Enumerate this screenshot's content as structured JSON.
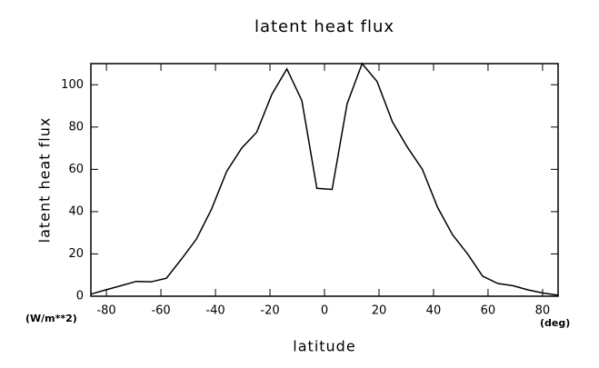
{
  "chart_data": {
    "type": "line",
    "title": "latent heat flux",
    "x_label": "latitude",
    "y_label": "latent heat flux",
    "x_unit": "(deg)",
    "y_unit": "(W/m**2)",
    "x": [
      -85.7,
      -80.2,
      -74.6,
      -69.1,
      -63.6,
      -58.0,
      -52.5,
      -47.0,
      -41.5,
      -35.9,
      -30.4,
      -24.9,
      -19.3,
      -13.8,
      -8.3,
      -2.8,
      2.8,
      8.3,
      13.8,
      19.3,
      24.9,
      30.4,
      35.9,
      41.5,
      47.0,
      52.5,
      58.0,
      63.6,
      69.1,
      74.6,
      80.2,
      85.7
    ],
    "series": [
      {
        "name": "latent heat flux",
        "color": "#000000",
        "values": [
          1,
          3,
          5,
          7,
          6.8,
          8.5,
          17.5,
          27,
          41,
          59,
          70,
          77.5,
          95.5,
          107.5,
          92.5,
          51,
          50.5,
          91,
          110,
          101.5,
          82.5,
          70.5,
          60,
          42,
          29,
          20,
          9.5,
          6,
          5,
          3,
          1.5,
          0.5
        ]
      }
    ],
    "xlim": [
      -85.7,
      85.7
    ],
    "ylim": [
      0,
      110
    ],
    "xticks": [
      -80,
      -60,
      -40,
      -20,
      0,
      20,
      40,
      60,
      80
    ],
    "yticks": [
      0,
      20,
      40,
      60,
      80,
      100
    ]
  }
}
